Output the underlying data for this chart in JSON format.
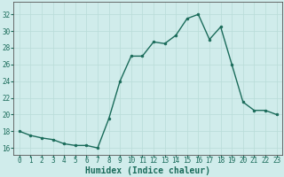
{
  "x": [
    0,
    1,
    2,
    3,
    4,
    5,
    6,
    7,
    8,
    9,
    10,
    11,
    12,
    13,
    14,
    15,
    16,
    17,
    18,
    19,
    20,
    21,
    22,
    23
  ],
  "y": [
    18.0,
    17.5,
    17.2,
    17.0,
    16.5,
    16.3,
    16.3,
    16.0,
    19.5,
    24.0,
    27.0,
    27.0,
    28.7,
    28.5,
    29.5,
    31.5,
    32.0,
    29.0,
    30.5,
    26.0,
    21.5,
    20.5,
    20.5,
    20.0
  ],
  "line_color": "#1a6b5a",
  "marker": "o",
  "marker_size": 2.0,
  "bg_color": "#d0eceb",
  "grid_color": "#b8dcd8",
  "xlabel": "Humidex (Indice chaleur)",
  "xlabel_fontsize": 7,
  "ylabel_ticks": [
    16,
    18,
    20,
    22,
    24,
    26,
    28,
    30,
    32
  ],
  "ylim": [
    15.2,
    33.5
  ],
  "xlim": [
    -0.5,
    23.5
  ],
  "tick_fontsize": 5.5,
  "line_width": 1.0,
  "spine_color": "#555555"
}
